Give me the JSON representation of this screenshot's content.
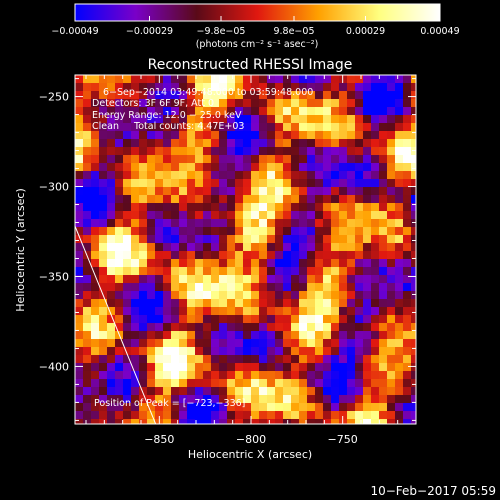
{
  "chart_data": {
    "type": "heatmap",
    "title": "Reconstructed RHESSI Image",
    "xlabel": "Heliocentric X (arcsec)",
    "ylabel": "Heliocentric Y (arcsec)",
    "xlim": [
      -896,
      -710
    ],
    "ylim": [
      -432,
      -238
    ],
    "x_ticks": [
      -850,
      -800,
      -750
    ],
    "y_ticks": [
      -250,
      -300,
      -350,
      -400
    ],
    "colorbar": {
      "units": "(photons cm⁻² s⁻¹ asec⁻²)",
      "range": [
        -0.00049,
        0.00049
      ],
      "ticks": [
        -0.00049,
        -0.00029,
        -9.8e-05,
        9.8e-05,
        0.00029,
        0.00049
      ],
      "tick_labels": [
        "−0.00049",
        "−0.00029",
        "−9.8e−05",
        "9.8e−05",
        "0.00029",
        "0.00049"
      ],
      "colormap": [
        "#0000ff",
        "#7a00c8",
        "#5a0a18",
        "#e01810",
        "#ffa000",
        "#ffff80",
        "#ffffff"
      ]
    },
    "annotations": [
      "6−Sep−2014 03:49:48.000 to 03:59:48.000",
      "Detectors: 3F 6F 9F, Att 0",
      "Energy Range: 12.0 − 25.0 keV",
      "Clean     Total counts: 4.47E+03"
    ],
    "peak_label": "Position of Peak = [−723,−336]",
    "peak": [
      -723,
      -336
    ],
    "limb_line": [
      [
        -896,
        -322
      ],
      [
        -852,
        -432
      ]
    ],
    "x_tick_labels": [
      "−850",
      "−800",
      "−750"
    ],
    "y_tick_labels": [
      "−250",
      "−300",
      "−350",
      "−400"
    ],
    "grid": false
  },
  "footer_timestamp": "10−Feb−2017 05:59"
}
